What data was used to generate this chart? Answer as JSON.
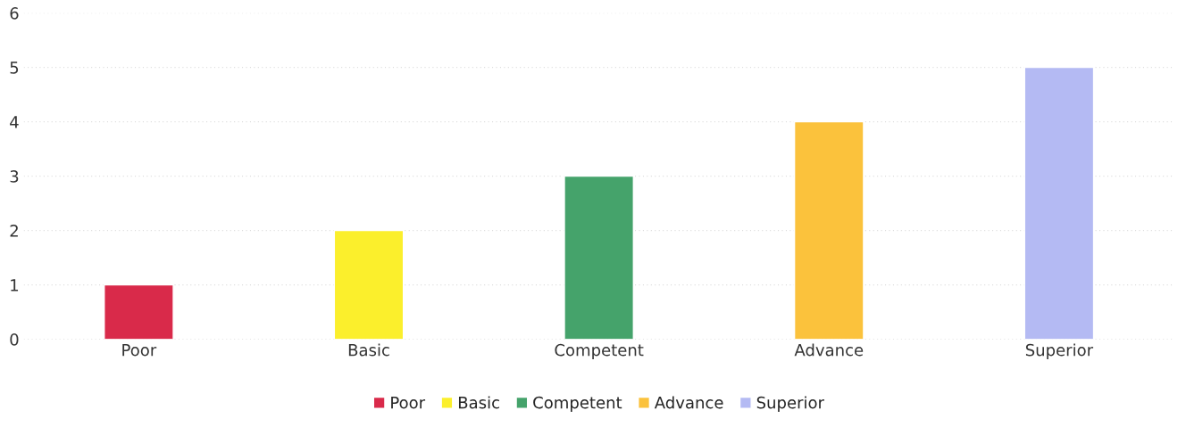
{
  "chart_data": {
    "type": "bar",
    "categories": [
      "Poor",
      "Basic",
      "Competent",
      "Advance",
      "Superior"
    ],
    "series": [
      {
        "name": "Poor",
        "color": "#d92a4a",
        "values": [
          1,
          null,
          null,
          null,
          null
        ]
      },
      {
        "name": "Basic",
        "color": "#fbef2c",
        "values": [
          null,
          2,
          null,
          null,
          null
        ]
      },
      {
        "name": "Competent",
        "color": "#45a36b",
        "values": [
          null,
          null,
          3,
          null,
          null
        ]
      },
      {
        "name": "Advance",
        "color": "#fbc23c",
        "values": [
          null,
          null,
          null,
          4,
          null
        ]
      },
      {
        "name": "Superior",
        "color": "#b4baf3",
        "values": [
          null,
          null,
          null,
          null,
          5
        ]
      }
    ],
    "ylim": [
      0,
      6
    ],
    "yticks": [
      0,
      1,
      2,
      3,
      4,
      5,
      6
    ],
    "grid": "y",
    "legend": "bottom"
  }
}
